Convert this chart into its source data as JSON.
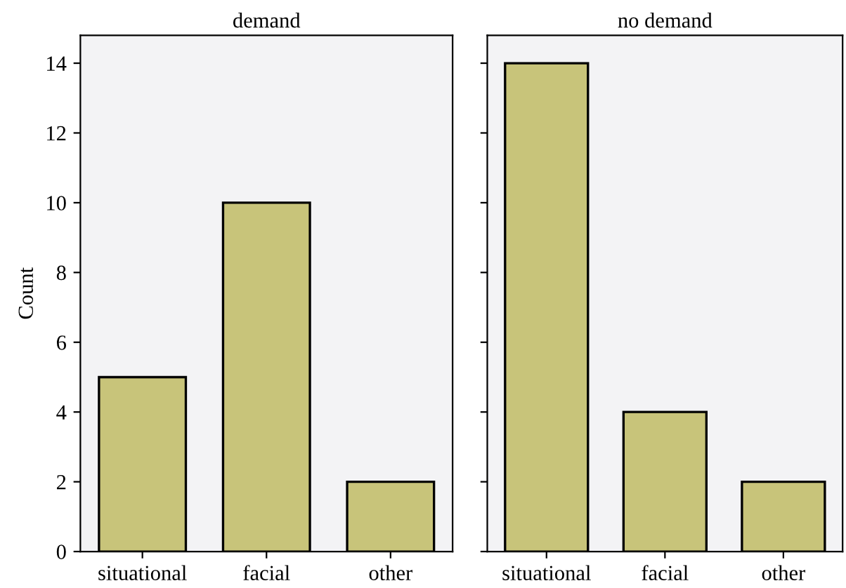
{
  "chart_data": [
    {
      "type": "bar",
      "title": "demand",
      "ylabel": "Count",
      "categories": [
        "situational",
        "facial",
        "other"
      ],
      "values": [
        5,
        10,
        2
      ],
      "color": "#c8c47a",
      "ylim": [
        0,
        14.8
      ],
      "yticks": [
        0,
        2,
        4,
        6,
        8,
        10,
        12,
        14
      ],
      "grid": false
    },
    {
      "type": "bar",
      "title": "no demand",
      "categories": [
        "situational",
        "facial",
        "other"
      ],
      "values": [
        14,
        4,
        2
      ],
      "color": "#c8c47a",
      "ylim": [
        0,
        14.8
      ],
      "yticks": [
        0,
        2,
        4,
        6,
        8,
        10,
        12,
        14
      ],
      "grid": false,
      "tick_labels": "x"
    }
  ]
}
